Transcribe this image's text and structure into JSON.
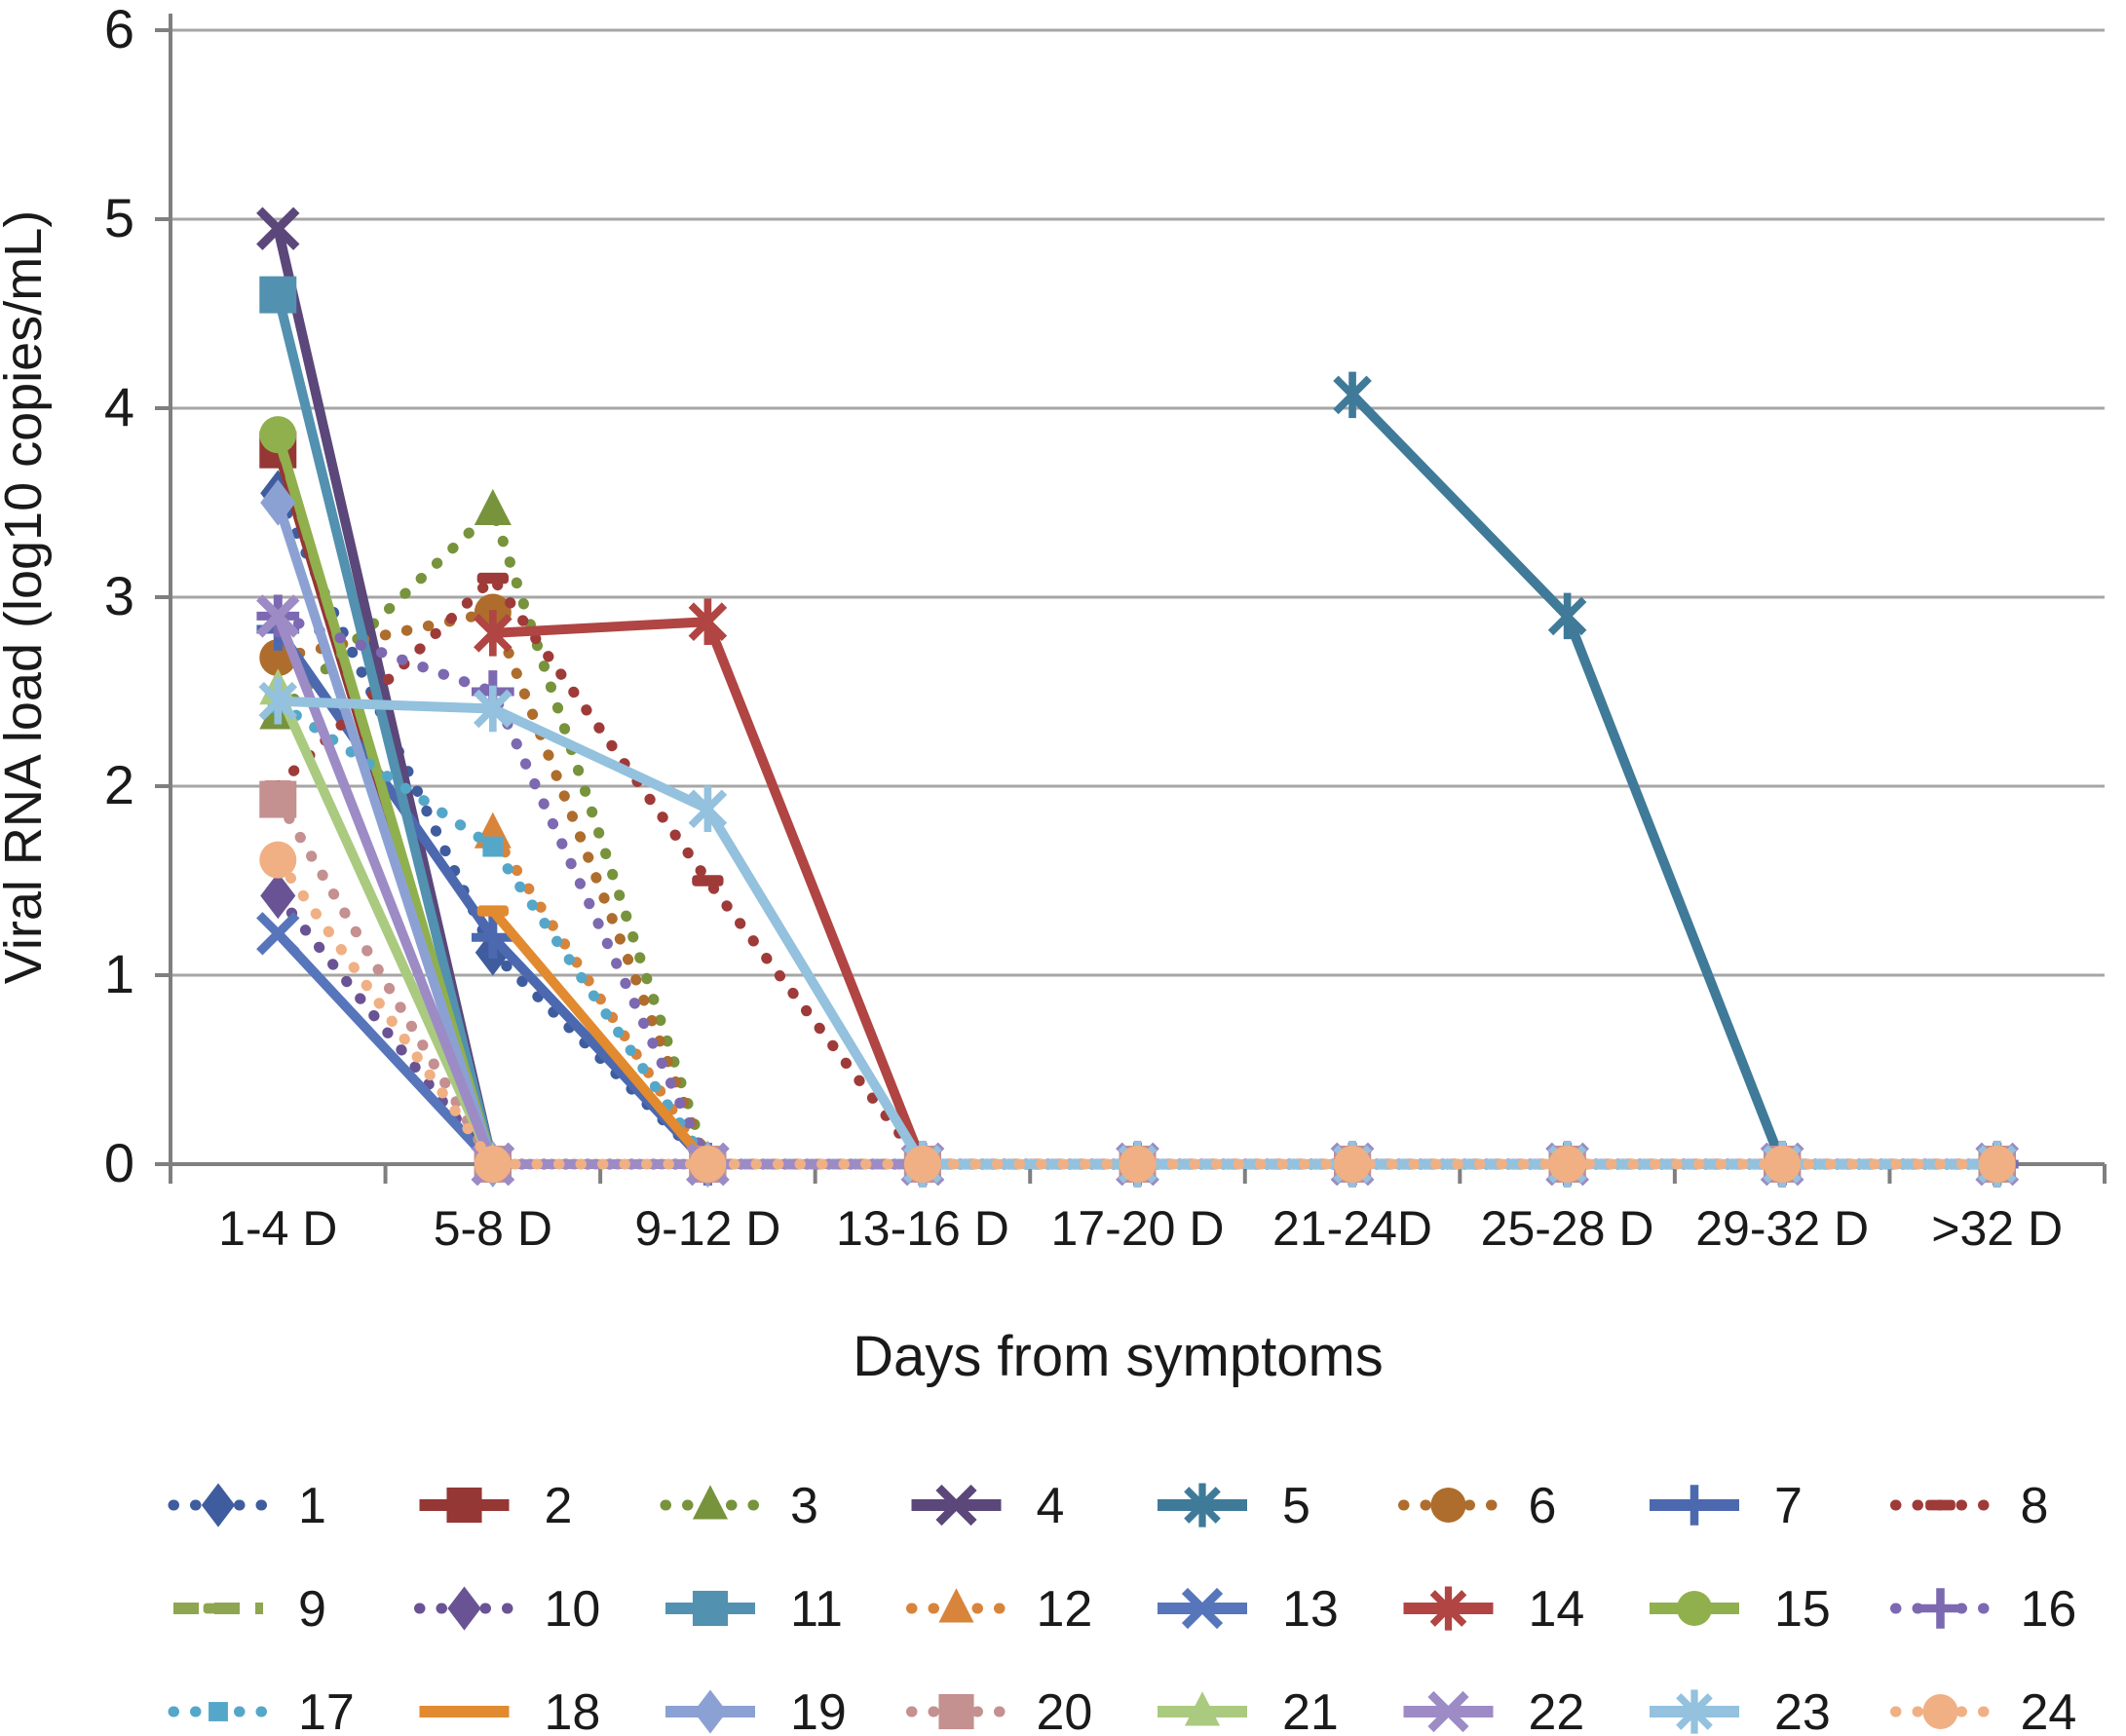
{
  "chart_data": {
    "type": "line",
    "title": "",
    "xlabel": "Days from symptoms",
    "ylabel": "Viral RNA load (log10 copies/mL)",
    "ylim": [
      0,
      6
    ],
    "yticks": [
      0,
      1,
      2,
      3,
      4,
      5,
      6
    ],
    "grid": true,
    "legend_position": "bottom",
    "axis_color": "#7f7f7f",
    "gridline_color": "#a6a6a6",
    "categories": [
      "1-4 D",
      "5-8 D",
      "9-12 D",
      "13-16 D",
      "17-20 D",
      "21-24D",
      "25-28 D",
      "29-32 D",
      ">32 D"
    ],
    "series": [
      {
        "name": "1",
        "color": "#3f5c9e",
        "line": "dotted",
        "marker": "diamond",
        "values": [
          3.55,
          1.12,
          0,
          0,
          0,
          0,
          0,
          0,
          0
        ]
      },
      {
        "name": "2",
        "color": "#953734",
        "line": "solid",
        "marker": "square",
        "values": [
          3.78,
          0,
          0,
          0,
          0,
          0,
          0,
          0,
          0
        ]
      },
      {
        "name": "3",
        "color": "#77933c",
        "line": "dotted",
        "marker": "triangle",
        "values": [
          2.38,
          3.46,
          0,
          0,
          0,
          0,
          0,
          0,
          0
        ]
      },
      {
        "name": "4",
        "color": "#5b4779",
        "line": "solid",
        "marker": "x",
        "values": [
          4.95,
          0,
          0,
          0,
          0,
          0,
          0,
          0,
          0
        ]
      },
      {
        "name": "5",
        "color": "#3f7a99",
        "line": "solid",
        "marker": "star",
        "values": [
          null,
          null,
          null,
          null,
          null,
          4.07,
          2.9,
          0,
          0
        ]
      },
      {
        "name": "6",
        "color": "#ae6d2c",
        "line": "dotted",
        "marker": "circle",
        "values": [
          2.68,
          2.92,
          0,
          0,
          0,
          0,
          0,
          0,
          0
        ]
      },
      {
        "name": "7",
        "color": "#4c69b0",
        "line": "solid",
        "marker": "plus",
        "values": [
          2.83,
          1.2,
          0,
          0,
          0,
          0,
          0,
          0,
          0
        ]
      },
      {
        "name": "8",
        "color": "#9e3b39",
        "line": "dotted",
        "marker": "dash",
        "values": [
          2.0,
          3.1,
          1.5,
          0,
          0,
          0,
          0,
          0,
          0
        ]
      },
      {
        "name": "9",
        "color": "#8ea551",
        "line": "dashed",
        "marker": "dash",
        "values": [
          3.85,
          0,
          0,
          0,
          0,
          0,
          0,
          0,
          0
        ]
      },
      {
        "name": "10",
        "color": "#6a5394",
        "line": "dotted",
        "marker": "diamond",
        "values": [
          1.42,
          0,
          0,
          0,
          0,
          0,
          0,
          0,
          0
        ]
      },
      {
        "name": "11",
        "color": "#5291b0",
        "line": "solid",
        "marker": "square",
        "values": [
          4.6,
          0,
          0,
          0,
          0,
          0,
          0,
          0,
          0
        ]
      },
      {
        "name": "12",
        "color": "#d8843b",
        "line": "dotted",
        "marker": "triangle",
        "values": [
          null,
          1.75,
          0,
          0,
          0,
          0,
          0,
          0,
          0
        ]
      },
      {
        "name": "13",
        "color": "#5775bb",
        "line": "solid",
        "marker": "x",
        "values": [
          1.22,
          0,
          0,
          0,
          0,
          0,
          0,
          0,
          0
        ]
      },
      {
        "name": "14",
        "color": "#b04543",
        "line": "solid",
        "marker": "star",
        "values": [
          null,
          2.81,
          2.87,
          0,
          0,
          0,
          0,
          0,
          0
        ]
      },
      {
        "name": "15",
        "color": "#90b04d",
        "line": "solid",
        "marker": "circle",
        "values": [
          3.86,
          0,
          0,
          0,
          0,
          0,
          0,
          0,
          0
        ]
      },
      {
        "name": "16",
        "color": "#7c69b1",
        "line": "dotted",
        "marker": "plus",
        "values": [
          2.9,
          2.5,
          0,
          0,
          0,
          0,
          0,
          0,
          0
        ]
      },
      {
        "name": "17",
        "color": "#55a7c9",
        "line": "dotted",
        "marker": "smallsquare",
        "values": [
          2.44,
          1.68,
          0,
          0,
          0,
          0,
          0,
          0,
          0
        ]
      },
      {
        "name": "18",
        "color": "#e28a2f",
        "line": "solid",
        "marker": "dash",
        "values": [
          null,
          1.34,
          0,
          0,
          0,
          0,
          0,
          0,
          0
        ]
      },
      {
        "name": "19",
        "color": "#8ca1d3",
        "line": "solid",
        "marker": "diamond",
        "values": [
          3.5,
          0,
          0,
          0,
          0,
          0,
          0,
          0,
          0
        ]
      },
      {
        "name": "20",
        "color": "#c49090",
        "line": "dotted",
        "marker": "square",
        "values": [
          1.93,
          0,
          0,
          0,
          0,
          0,
          0,
          0,
          0
        ]
      },
      {
        "name": "21",
        "color": "#aaca80",
        "line": "solid",
        "marker": "triangle",
        "values": [
          2.51,
          0,
          0,
          0,
          0,
          0,
          0,
          0,
          0
        ]
      },
      {
        "name": "22",
        "color": "#9d8bc5",
        "line": "solid",
        "marker": "x",
        "values": [
          2.9,
          0,
          0,
          0,
          0,
          0,
          0,
          0,
          0
        ]
      },
      {
        "name": "23",
        "color": "#93c1de",
        "line": "solid",
        "marker": "star",
        "values": [
          2.45,
          2.41,
          1.88,
          0,
          0,
          0,
          0,
          0,
          0
        ]
      },
      {
        "name": "24",
        "color": "#f0b083",
        "line": "dotted",
        "marker": "circle",
        "values": [
          1.61,
          0,
          0,
          0,
          0,
          0,
          0,
          0,
          0
        ]
      }
    ]
  }
}
